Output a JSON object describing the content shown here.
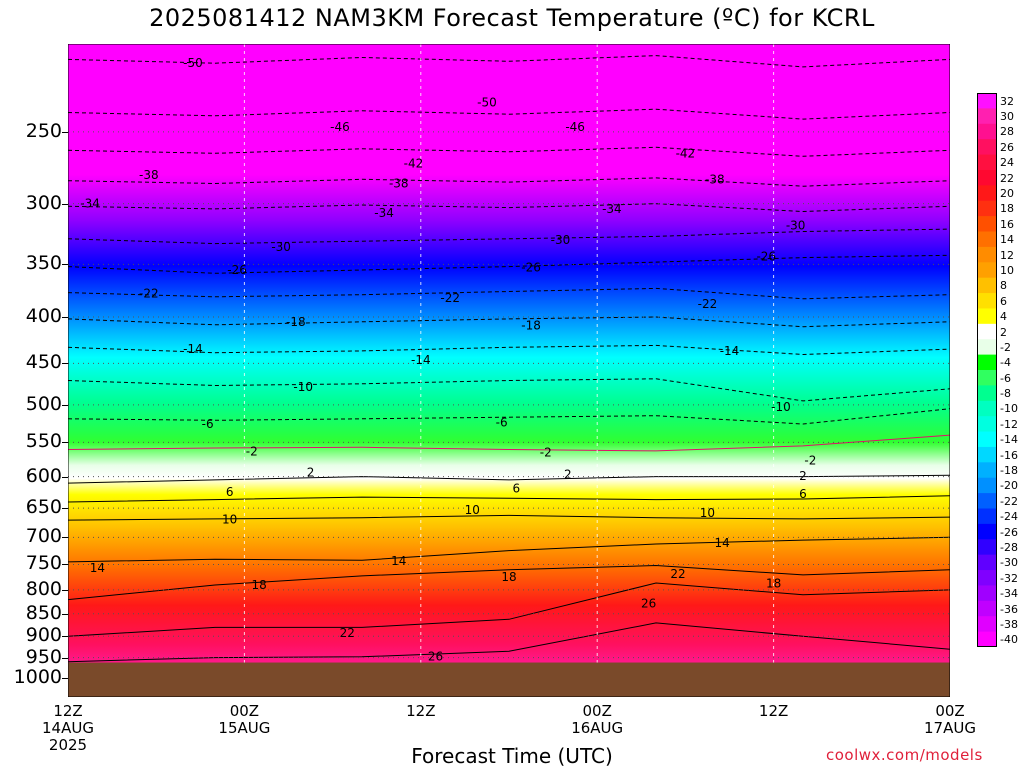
{
  "title": "2025081412 NAM3KM Forecast Temperature (ºC) for KCRL",
  "xlabel": "Forecast Time (UTC)",
  "credit": "coolwx.com/models",
  "ground_color": "#7a4a2a",
  "chart_data": {
    "type": "heatmap",
    "title": "2025081412 NAM3KM Forecast Temperature (ºC) for KCRL",
    "xlabel": "Forecast Time (UTC)",
    "ylabel": "",
    "x_ticks": [
      {
        "label": "12Z",
        "sub": "14AUG",
        "sub2": "2025",
        "hour": 0
      },
      {
        "label": "00Z",
        "sub": "15AUG",
        "sub2": "",
        "hour": 12
      },
      {
        "label": "12Z",
        "sub": "",
        "sub2": "",
        "hour": 24
      },
      {
        "label": "00Z",
        "sub": "16AUG",
        "sub2": "",
        "hour": 36
      },
      {
        "label": "12Z",
        "sub": "",
        "sub2": "",
        "hour": 48
      },
      {
        "label": "00Z",
        "sub": "17AUG",
        "sub2": "",
        "hour": 60
      }
    ],
    "xlim_hours": [
      0,
      60
    ],
    "y_ticks": [
      250,
      300,
      350,
      400,
      450,
      500,
      550,
      600,
      650,
      700,
      750,
      800,
      850,
      900,
      950,
      1000
    ],
    "ylim_hpa": [
      200,
      1050
    ],
    "surface_hpa": 962,
    "colorbar_labels": [
      32,
      30,
      28,
      26,
      24,
      22,
      20,
      18,
      16,
      14,
      12,
      10,
      8,
      6,
      4,
      2,
      -2,
      -4,
      -6,
      -8,
      -10,
      -12,
      -14,
      -16,
      -18,
      -20,
      -22,
      -24,
      -26,
      -28,
      -30,
      -32,
      -34,
      -36,
      -38,
      -40
    ],
    "colorbar_colors": [
      "#ff10ff",
      "#ff20b0",
      "#ff1090",
      "#ff1060",
      "#ff1040",
      "#ff0830",
      "#ff1818",
      "#ff3010",
      "#ff5000",
      "#ff7000",
      "#ff8c00",
      "#ffa000",
      "#ffc000",
      "#ffe000",
      "#ffff00",
      "#ffffff",
      "#e8ffe8",
      "#00ff00",
      "#30ff60",
      "#00ff90",
      "#00ffc0",
      "#00ffe0",
      "#00ffff",
      "#00d8ff",
      "#00b0ff",
      "#0090ff",
      "#0060ff",
      "#0030ff",
      "#0000ff",
      "#3000ff",
      "#6000ff",
      "#8000ff",
      "#a000ff",
      "#c000ff",
      "#e000ff",
      "#ff00ff"
    ],
    "isotherms": [
      {
        "value": -50,
        "levels_hpa": [
          208,
          210,
          207,
          209,
          206,
          212,
          208
        ]
      },
      {
        "value": -46,
        "levels_hpa": [
          238,
          240,
          237,
          239,
          236,
          242,
          238
        ]
      },
      {
        "value": -42,
        "levels_hpa": [
          262,
          264,
          261,
          263,
          260,
          266,
          262
        ]
      },
      {
        "value": -38,
        "levels_hpa": [
          283,
          285,
          282,
          284,
          281,
          287,
          283
        ]
      },
      {
        "value": -34,
        "levels_hpa": [
          302,
          304,
          301,
          303,
          300,
          306,
          302
        ]
      },
      {
        "value": -30,
        "levels_hpa": [
          328,
          332,
          330,
          328,
          326,
          322,
          320
        ]
      },
      {
        "value": -26,
        "levels_hpa": [
          352,
          358,
          355,
          352,
          348,
          344,
          342
        ]
      },
      {
        "value": -22,
        "levels_hpa": [
          376,
          380,
          378,
          375,
          372,
          382,
          378
        ]
      },
      {
        "value": -18,
        "levels_hpa": [
          402,
          408,
          405,
          402,
          400,
          410,
          405
        ]
      },
      {
        "value": -14,
        "levels_hpa": [
          432,
          438,
          436,
          432,
          430,
          440,
          434
        ]
      },
      {
        "value": -10,
        "levels_hpa": [
          470,
          476,
          474,
          470,
          468,
          495,
          480
        ]
      },
      {
        "value": -6,
        "levels_hpa": [
          518,
          520,
          518,
          516,
          514,
          525,
          505
        ]
      },
      {
        "value": -2,
        "levels_hpa": [
          560,
          558,
          557,
          560,
          562,
          555,
          540
        ]
      },
      {
        "value": 2,
        "levels_hpa": [
          610,
          605,
          600,
          605,
          600,
          600,
          598
        ]
      },
      {
        "value": 6,
        "levels_hpa": [
          640,
          636,
          632,
          634,
          636,
          635,
          630
        ]
      },
      {
        "value": 10,
        "levels_hpa": [
          670,
          668,
          666,
          662,
          666,
          668,
          665
        ]
      },
      {
        "value": 14,
        "levels_hpa": [
          745,
          740,
          742,
          724,
          712,
          705,
          700
        ]
      },
      {
        "value": 18,
        "levels_hpa": [
          820,
          790,
          772,
          760,
          752,
          770,
          760
        ]
      },
      {
        "value": 22,
        "levels_hpa": [
          900,
          880,
          880,
          862,
          786,
          810,
          800
        ]
      },
      {
        "value": 26,
        "levels_hpa": [
          960,
          950,
          948,
          935,
          870,
          900,
          930
        ]
      }
    ]
  },
  "contour_labels": [
    {
      "text": "-50",
      "hour": 8.5,
      "hpa": 210
    },
    {
      "text": "-50",
      "hour": 28.5,
      "hpa": 232
    },
    {
      "text": "-46",
      "hour": 18.5,
      "hpa": 247
    },
    {
      "text": "-46",
      "hour": 34.5,
      "hpa": 247
    },
    {
      "text": "-42",
      "hour": 23.5,
      "hpa": 271
    },
    {
      "text": "-42",
      "hour": 42,
      "hpa": 264
    },
    {
      "text": "-38",
      "hour": 5.5,
      "hpa": 279
    },
    {
      "text": "-38",
      "hour": 22.5,
      "hpa": 285
    },
    {
      "text": "-38",
      "hour": 44,
      "hpa": 282
    },
    {
      "text": "-34",
      "hour": 1.5,
      "hpa": 300
    },
    {
      "text": "-34",
      "hour": 21.5,
      "hpa": 307
    },
    {
      "text": "-34",
      "hour": 37,
      "hpa": 304
    },
    {
      "text": "-30",
      "hour": 14.5,
      "hpa": 335
    },
    {
      "text": "-30",
      "hour": 33.5,
      "hpa": 329
    },
    {
      "text": "-30",
      "hour": 49.5,
      "hpa": 317
    },
    {
      "text": "-26",
      "hour": 11.5,
      "hpa": 355
    },
    {
      "text": "-26",
      "hour": 31.5,
      "hpa": 353
    },
    {
      "text": "-26",
      "hour": 47.5,
      "hpa": 343
    },
    {
      "text": "-22",
      "hour": 5.5,
      "hpa": 377
    },
    {
      "text": "-22",
      "hour": 26,
      "hpa": 381
    },
    {
      "text": "-22",
      "hour": 43.5,
      "hpa": 387
    },
    {
      "text": "-18",
      "hour": 15.5,
      "hpa": 405
    },
    {
      "text": "-18",
      "hour": 31.5,
      "hpa": 409
    },
    {
      "text": "-14",
      "hour": 8.5,
      "hpa": 434
    },
    {
      "text": "-14",
      "hour": 24,
      "hpa": 446
    },
    {
      "text": "-14",
      "hour": 45,
      "hpa": 436
    },
    {
      "text": "-10",
      "hour": 16,
      "hpa": 478
    },
    {
      "text": "-10",
      "hour": 48.5,
      "hpa": 503
    },
    {
      "text": "-6",
      "hour": 9.5,
      "hpa": 525
    },
    {
      "text": "-6",
      "hour": 29.5,
      "hpa": 523
    },
    {
      "text": "-2",
      "hour": 12.5,
      "hpa": 563
    },
    {
      "text": "-2",
      "hour": 32.5,
      "hpa": 564
    },
    {
      "text": "-2",
      "hour": 50.5,
      "hpa": 576
    },
    {
      "text": "2",
      "hour": 16.5,
      "hpa": 594
    },
    {
      "text": "2",
      "hour": 34,
      "hpa": 597
    },
    {
      "text": "2",
      "hour": 50,
      "hpa": 599
    },
    {
      "text": "6",
      "hour": 11,
      "hpa": 624
    },
    {
      "text": "6",
      "hour": 30.5,
      "hpa": 618
    },
    {
      "text": "6",
      "hour": 50,
      "hpa": 627
    },
    {
      "text": "10",
      "hour": 11,
      "hpa": 669
    },
    {
      "text": "10",
      "hour": 27.5,
      "hpa": 653
    },
    {
      "text": "10",
      "hour": 43.5,
      "hpa": 658
    },
    {
      "text": "14",
      "hour": 2,
      "hpa": 757
    },
    {
      "text": "14",
      "hour": 22.5,
      "hpa": 743
    },
    {
      "text": "14",
      "hour": 44.5,
      "hpa": 710
    },
    {
      "text": "18",
      "hour": 13,
      "hpa": 790
    },
    {
      "text": "18",
      "hour": 30,
      "hpa": 774
    },
    {
      "text": "18",
      "hour": 48,
      "hpa": 787
    },
    {
      "text": "22",
      "hour": 19,
      "hpa": 892
    },
    {
      "text": "22",
      "hour": 41.5,
      "hpa": 768
    },
    {
      "text": "26",
      "hour": 25,
      "hpa": 947
    },
    {
      "text": "26",
      "hour": 39.5,
      "hpa": 828
    }
  ]
}
